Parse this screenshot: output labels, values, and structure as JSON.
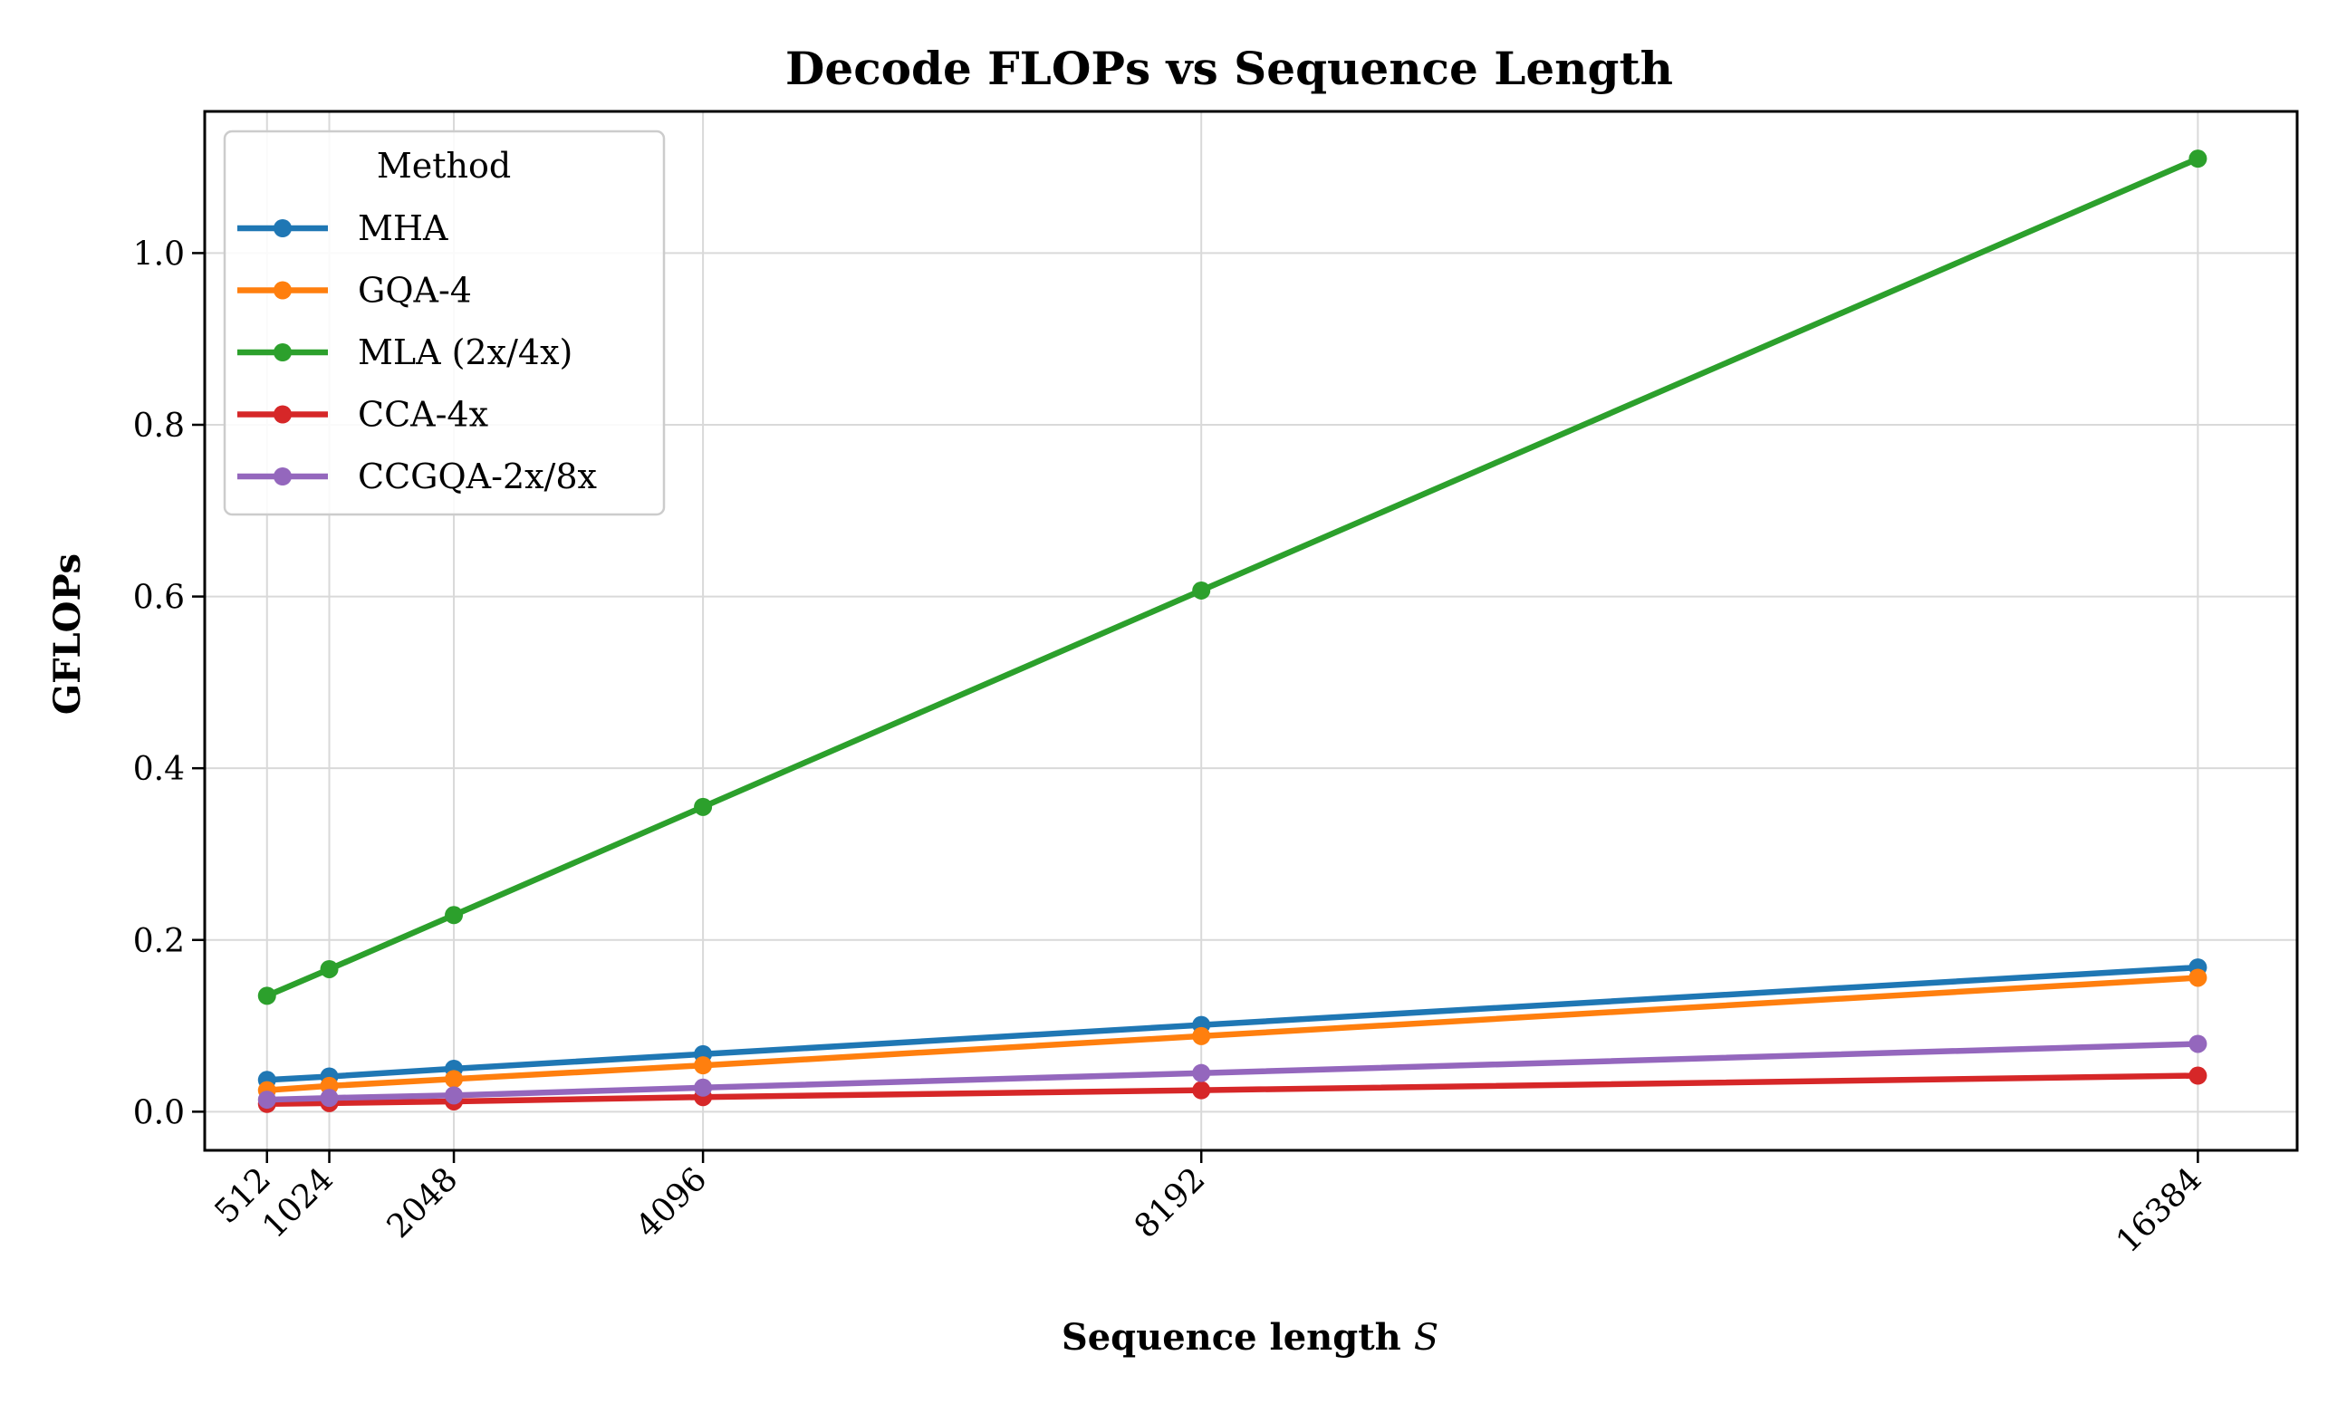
{
  "chart_data": {
    "type": "line",
    "title": "Decode FLOPs vs Sequence Length",
    "xlabel_text": "Sequence length",
    "xlabel_var": "S",
    "ylabel": "GFLOPs",
    "x": [
      512,
      1024,
      2048,
      4096,
      8192,
      16384
    ],
    "x_tick_labels": [
      "512",
      "1024",
      "2048",
      "4096",
      "8192",
      "16384"
    ],
    "xlim": [
      0,
      17200
    ],
    "ylim": [
      -0.045,
      1.165
    ],
    "y_ticks": [
      0.0,
      0.2,
      0.4,
      0.6,
      0.8,
      1.0
    ],
    "y_tick_labels": [
      "0.0",
      "0.2",
      "0.4",
      "0.6",
      "0.8",
      "1.0"
    ],
    "grid": true,
    "legend_title": "Method",
    "legend_position": "top-left",
    "series": [
      {
        "name": "MHA",
        "color": "#1f77b4",
        "values": [
          0.037,
          0.041,
          0.05,
          0.067,
          0.101,
          0.168
        ]
      },
      {
        "name": "GQA-4",
        "color": "#ff7f0e",
        "values": [
          0.025,
          0.03,
          0.038,
          0.054,
          0.088,
          0.156
        ]
      },
      {
        "name": "MLA (2x/4x)",
        "color": "#2ca02c",
        "values": [
          0.135,
          0.166,
          0.229,
          0.355,
          0.607,
          1.11
        ]
      },
      {
        "name": "CCA-4x",
        "color": "#d62728",
        "values": [
          0.009,
          0.01,
          0.012,
          0.017,
          0.025,
          0.042
        ]
      },
      {
        "name": "CCGQA-2x/8x",
        "color": "#9467bd",
        "values": [
          0.014,
          0.016,
          0.019,
          0.028,
          0.045,
          0.079
        ]
      }
    ]
  }
}
